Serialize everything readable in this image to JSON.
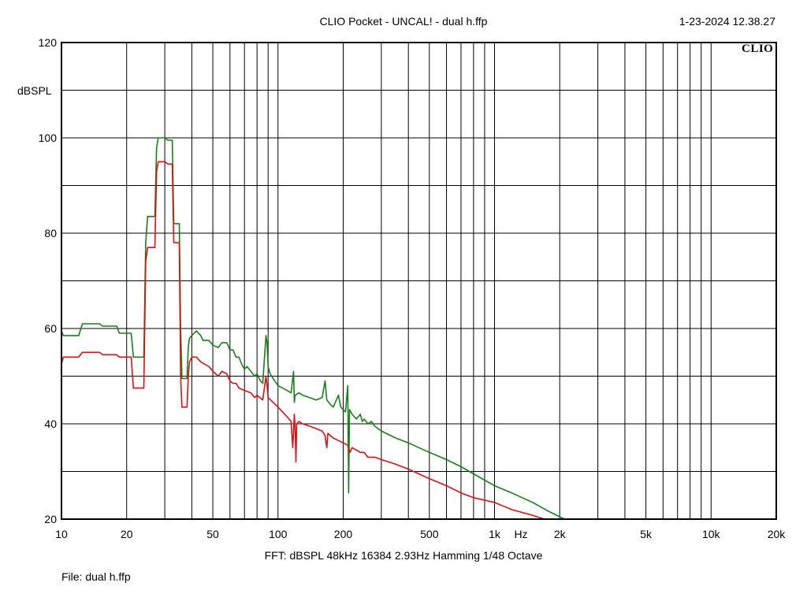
{
  "header": {
    "title": "CLIO Pocket - UNCAL! - dual h.ffp",
    "timestamp": "1-23-2024 12.38.27",
    "brand": "CLIO"
  },
  "footer": {
    "fft_info": "FFT:  dBSPL  48kHz   16384  2.93Hz  Hamming  1/48 Octave",
    "file": "File: dual h.ffp"
  },
  "chart_data": {
    "type": "line",
    "title": "CLIO Pocket - UNCAL! - dual h.ffp",
    "xlabel": "Hz",
    "ylabel": "dBSPL",
    "xscale": "log",
    "xlim": [
      10,
      20000
    ],
    "ylim": [
      20,
      120
    ],
    "grid": true,
    "x_tick_labels": [
      {
        "v": 10,
        "t": "10"
      },
      {
        "v": 20,
        "t": "20"
      },
      {
        "v": 50,
        "t": "50"
      },
      {
        "v": 100,
        "t": "100"
      },
      {
        "v": 200,
        "t": "200"
      },
      {
        "v": 500,
        "t": "500"
      },
      {
        "v": 1000,
        "t": "1k"
      },
      {
        "v": 2000,
        "t": "2k"
      },
      {
        "v": 5000,
        "t": "5k"
      },
      {
        "v": 10000,
        "t": "10k"
      },
      {
        "v": 20000,
        "t": "20k"
      }
    ],
    "y_tick_labels": [
      {
        "v": 20,
        "t": "20"
      },
      {
        "v": 40,
        "t": "40"
      },
      {
        "v": 60,
        "t": "60"
      },
      {
        "v": 80,
        "t": "80"
      },
      {
        "v": 100,
        "t": "100"
      },
      {
        "v": 120,
        "t": "120"
      }
    ],
    "series": [
      {
        "color": "#1a7f1a",
        "points": [
          [
            10,
            59.5
          ],
          [
            10.2,
            58.5
          ],
          [
            12,
            58.5
          ],
          [
            12.5,
            61
          ],
          [
            15,
            61
          ],
          [
            15.5,
            60.5
          ],
          [
            18,
            60.5
          ],
          [
            18.5,
            59
          ],
          [
            21,
            59
          ],
          [
            21.5,
            54
          ],
          [
            24,
            54
          ],
          [
            24.5,
            78
          ],
          [
            25,
            83.5
          ],
          [
            27,
            83.5
          ],
          [
            27.5,
            98
          ],
          [
            28,
            100
          ],
          [
            30,
            100
          ],
          [
            31,
            99.5
          ],
          [
            32.5,
            99.5
          ],
          [
            33,
            82
          ],
          [
            35,
            82
          ],
          [
            35.5,
            60
          ],
          [
            36,
            49.5
          ],
          [
            38,
            49.5
          ],
          [
            38.5,
            56
          ],
          [
            39,
            58
          ],
          [
            40,
            58.5
          ],
          [
            42,
            59.5
          ],
          [
            44,
            58.5
          ],
          [
            45,
            57.5
          ],
          [
            48,
            57.5
          ],
          [
            50,
            56.5
          ],
          [
            53,
            56
          ],
          [
            55,
            57
          ],
          [
            58,
            57
          ],
          [
            60,
            55.5
          ],
          [
            62,
            55.5
          ],
          [
            64,
            54
          ],
          [
            66,
            54
          ],
          [
            68,
            52.5
          ],
          [
            70,
            51.5
          ],
          [
            72,
            52
          ],
          [
            75,
            51
          ],
          [
            78,
            50
          ],
          [
            80,
            50.5
          ],
          [
            83,
            49
          ],
          [
            85,
            48.5
          ],
          [
            88,
            58.5
          ],
          [
            89,
            57
          ],
          [
            90,
            52
          ],
          [
            92,
            50.5
          ],
          [
            95,
            49.5
          ],
          [
            100,
            48
          ],
          [
            105,
            47.5
          ],
          [
            110,
            47
          ],
          [
            115,
            46.5
          ],
          [
            118,
            51
          ],
          [
            119,
            44.5
          ],
          [
            120,
            46
          ],
          [
            125,
            46.5
          ],
          [
            130,
            46
          ],
          [
            140,
            45.5
          ],
          [
            150,
            45
          ],
          [
            160,
            45.5
          ],
          [
            165,
            49
          ],
          [
            168,
            45
          ],
          [
            175,
            44
          ],
          [
            180,
            43.5
          ],
          [
            190,
            46
          ],
          [
            195,
            43.5
          ],
          [
            200,
            43
          ],
          [
            205,
            42.5
          ],
          [
            210,
            48
          ],
          [
            212,
            25.5
          ],
          [
            214,
            43
          ],
          [
            220,
            42
          ],
          [
            230,
            41
          ],
          [
            240,
            42
          ],
          [
            245,
            40.5
          ],
          [
            250,
            41
          ],
          [
            260,
            40
          ],
          [
            270,
            40.5
          ],
          [
            280,
            39.5
          ],
          [
            300,
            38.5
          ],
          [
            350,
            37
          ],
          [
            400,
            36
          ],
          [
            500,
            34
          ],
          [
            600,
            32.5
          ],
          [
            700,
            31
          ],
          [
            800,
            29.5
          ],
          [
            1000,
            27
          ],
          [
            1200,
            25.5
          ],
          [
            1500,
            23.5
          ],
          [
            1800,
            21.5
          ],
          [
            2000,
            20.5
          ],
          [
            2100,
            20
          ]
        ]
      },
      {
        "color": "#dd1111",
        "points": [
          [
            10,
            52.5
          ],
          [
            10.2,
            54
          ],
          [
            12,
            54
          ],
          [
            12.5,
            55
          ],
          [
            15,
            55
          ],
          [
            15.5,
            54.5
          ],
          [
            18,
            54.5
          ],
          [
            18.5,
            54
          ],
          [
            21,
            54
          ],
          [
            21.5,
            47.5
          ],
          [
            24,
            47.5
          ],
          [
            24.5,
            74
          ],
          [
            25,
            77
          ],
          [
            27,
            77
          ],
          [
            27.5,
            93
          ],
          [
            28,
            95
          ],
          [
            30,
            95
          ],
          [
            31,
            94.5
          ],
          [
            32.5,
            94.5
          ],
          [
            33,
            78
          ],
          [
            35,
            78
          ],
          [
            35.5,
            50
          ],
          [
            36,
            43.5
          ],
          [
            38,
            43.5
          ],
          [
            38.5,
            50
          ],
          [
            39,
            53
          ],
          [
            40,
            54
          ],
          [
            42,
            54
          ],
          [
            44,
            53
          ],
          [
            46,
            52.5
          ],
          [
            48,
            52
          ],
          [
            50,
            51
          ],
          [
            53,
            50
          ],
          [
            55,
            51
          ],
          [
            58,
            50.5
          ],
          [
            60,
            49
          ],
          [
            62,
            48.5
          ],
          [
            64,
            48.5
          ],
          [
            66,
            47.5
          ],
          [
            70,
            47
          ],
          [
            75,
            46.5
          ],
          [
            78,
            45.5
          ],
          [
            80,
            46
          ],
          [
            85,
            45
          ],
          [
            88,
            50
          ],
          [
            89,
            48
          ],
          [
            90,
            45.5
          ],
          [
            95,
            44.5
          ],
          [
            100,
            43.5
          ],
          [
            105,
            42.5
          ],
          [
            110,
            41.5
          ],
          [
            115,
            40.5
          ],
          [
            117,
            35
          ],
          [
            119,
            42
          ],
          [
            120,
            39
          ],
          [
            121,
            32
          ],
          [
            122,
            40
          ],
          [
            125,
            40.5
          ],
          [
            130,
            40
          ],
          [
            140,
            39.5
          ],
          [
            150,
            39
          ],
          [
            160,
            38.5
          ],
          [
            165,
            37.5
          ],
          [
            168,
            35
          ],
          [
            170,
            38
          ],
          [
            175,
            37.5
          ],
          [
            180,
            37
          ],
          [
            190,
            36.5
          ],
          [
            200,
            36
          ],
          [
            210,
            35.5
          ],
          [
            215,
            34
          ],
          [
            220,
            35
          ],
          [
            230,
            34.5
          ],
          [
            240,
            34
          ],
          [
            250,
            34
          ],
          [
            260,
            33
          ],
          [
            280,
            33
          ],
          [
            300,
            32.5
          ],
          [
            350,
            31.5
          ],
          [
            400,
            30.5
          ],
          [
            500,
            28.5
          ],
          [
            600,
            27
          ],
          [
            700,
            25.5
          ],
          [
            800,
            24.5
          ],
          [
            1000,
            23.5
          ],
          [
            1200,
            22
          ],
          [
            1500,
            20.8
          ],
          [
            1700,
            20
          ]
        ]
      }
    ]
  }
}
